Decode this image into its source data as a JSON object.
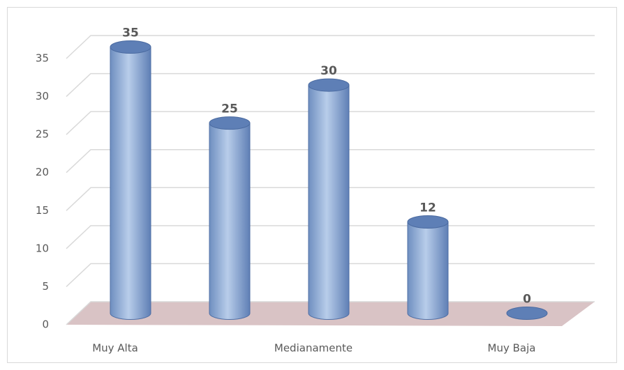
{
  "chart_data": {
    "type": "bar3d",
    "categories": [
      "Muy Alta",
      null,
      "Medianamente",
      null,
      "Muy Baja"
    ],
    "values": [
      35,
      25,
      30,
      12,
      0
    ],
    "color": "#95b3d7",
    "floor_color": "#d9c3c5",
    "ylim": [
      0,
      35
    ],
    "yticks": [
      0,
      5,
      10,
      15,
      20,
      25,
      30,
      35
    ],
    "grid": true
  }
}
